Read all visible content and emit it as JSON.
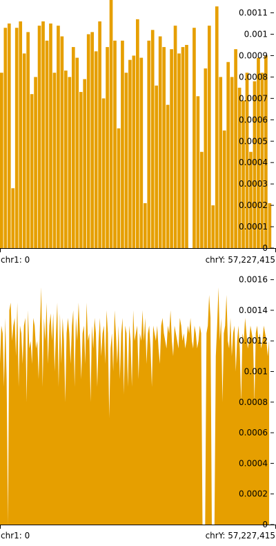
{
  "chart_data": [
    {
      "type": "bar",
      "color": "#E69F00",
      "ylim": [
        0,
        0.00116
      ],
      "y_ticks": [
        0,
        0.0001,
        0.0002,
        0.0003,
        0.0004,
        0.0005,
        0.0006,
        0.0007,
        0.0008,
        0.0009,
        0.001,
        0.0011
      ],
      "y_tick_labels": [
        "0",
        "0.0001",
        "0.0002",
        "0.0003",
        "0.0004",
        "0.0005",
        "0.0006",
        "0.0007",
        "0.0008",
        "0.0009",
        "0.001",
        "0.0011"
      ],
      "x_range_labels": {
        "start": "chr1: 0",
        "end": "chrY: 57,227,415"
      },
      "values": [
        0.00082,
        0.00103,
        0.00105,
        0.00028,
        0.00103,
        0.00106,
        0.00091,
        0.00101,
        0.00072,
        0.0008,
        0.00104,
        0.00106,
        0.00097,
        0.00105,
        0.00082,
        0.00104,
        0.00099,
        0.00083,
        0.0008,
        0.00094,
        0.00089,
        0.00073,
        0.00079,
        0.001,
        0.00101,
        0.00092,
        0.00106,
        0.0007,
        0.00094,
        0.00116,
        0.00097,
        0.00056,
        0.00097,
        0.00082,
        0.00088,
        0.0009,
        0.00107,
        0.00089,
        0.00021,
        0.00097,
        0.00102,
        0.00076,
        0.00099,
        0.00094,
        0.00067,
        0.00093,
        0.00104,
        0.00091,
        0.00094,
        0.00095,
        0.0,
        0.00103,
        0.00071,
        0.00045,
        0.00084,
        0.00104,
        0.0002,
        0.00113,
        0.0008,
        0.00055,
        0.00087,
        0.0008,
        0.00093,
        0.00075,
        0.00069,
        0.00082,
        0.00045,
        0.00078,
        0.00089,
        0.00082,
        0.0009,
        0.00021
      ]
    },
    {
      "type": "area",
      "color": "#E69F00",
      "ylim": [
        0,
        0.00163
      ],
      "y_ticks": [
        0,
        0.0002,
        0.0004,
        0.0006,
        0.0008,
        0.001,
        0.0012,
        0.0014,
        0.0016
      ],
      "y_tick_labels": [
        "0",
        "0.0002",
        "0.0004",
        "0.0006",
        "0.0008",
        "0.001",
        "0.0012",
        "0.0014",
        "0.0016"
      ],
      "x_range_labels": {
        "start": "chr1: 0",
        "end": "chrY: 57,227,415"
      },
      "values": [
        0.00105,
        0.0013,
        0.00125,
        0.0009,
        0.00135,
        0.00095,
        0.0,
        0.0014,
        0.00145,
        0.0012,
        0.0013,
        0.00135,
        0.0011,
        0.00145,
        0.0009,
        0.0013,
        0.00125,
        0.00105,
        0.0013,
        0.00135,
        0.0008,
        0.0014,
        0.00115,
        0.0012,
        0.00105,
        0.00135,
        0.0013,
        0.00115,
        0.0012,
        0.00095,
        0.0013,
        0.00155,
        0.0009,
        0.00135,
        0.0012,
        0.00145,
        0.00105,
        0.0013,
        0.00138,
        0.0012,
        0.00138,
        0.001,
        0.00125,
        0.00145,
        0.0009,
        0.00138,
        0.00105,
        0.00135,
        0.0012,
        0.0008,
        0.00125,
        0.00135,
        0.00125,
        0.00105,
        0.0013,
        0.0014,
        0.0009,
        0.00135,
        0.0012,
        0.00145,
        0.00125,
        0.00095,
        0.00125,
        0.0013,
        0.00105,
        0.00145,
        0.0012,
        0.00125,
        0.0008,
        0.0013,
        0.00115,
        0.00135,
        0.00125,
        0.0009,
        0.0012,
        0.00135,
        0.0011,
        0.00125,
        0.0013,
        0.00105,
        0.0014,
        0.00125,
        0.0007,
        0.00115,
        0.00125,
        0.001,
        0.0014,
        0.00125,
        0.00105,
        0.0013,
        0.00095,
        0.00125,
        0.00135,
        0.00085,
        0.0013,
        0.00125,
        0.0009,
        0.0013,
        0.0012,
        0.0009,
        0.0014,
        0.0012,
        0.00125,
        0.0013,
        0.00095,
        0.00125,
        0.0012,
        0.0014,
        0.0012,
        0.00135,
        0.00105,
        0.00125,
        0.0013,
        0.00115,
        0.0009,
        0.0013,
        0.00125,
        0.0012,
        0.0013,
        0.00115,
        0.00105,
        0.0013,
        0.00135,
        0.00125,
        0.0012,
        0.00115,
        0.0013,
        0.00125,
        0.0014,
        0.0012,
        0.0011,
        0.0013,
        0.00125,
        0.0012,
        0.00115,
        0.00135,
        0.0013,
        0.0012,
        0.00125,
        0.00115,
        0.0012,
        0.0013,
        0.00125,
        0.00135,
        0.0012,
        0.00115,
        0.0013,
        0.00125,
        0.00115,
        0.0012,
        0.0013,
        0.00125,
        0.0,
        0.0,
        0.0,
        0.00125,
        0.0013,
        0.0015,
        0.00135,
        0.0,
        0.0,
        0.0,
        0.0011,
        0.0013,
        0.00155,
        0.0012,
        0.00135,
        0.0008,
        0.00125,
        0.0013,
        0.0015,
        0.0012,
        0.00115,
        0.00135,
        0.0011,
        0.00125,
        0.0013,
        0.001,
        0.0012,
        0.0013,
        0.00115,
        0.0008,
        0.00125,
        0.0012,
        0.00135,
        0.00125,
        0.00115,
        0.0012,
        0.0013,
        0.00125,
        0.0012,
        0.0008,
        0.00125,
        0.0013,
        0.0012,
        0.00125,
        0.00115,
        0.0012,
        0.0013,
        0.00125,
        0.0012,
        0.0011,
        0.0012
      ]
    }
  ]
}
